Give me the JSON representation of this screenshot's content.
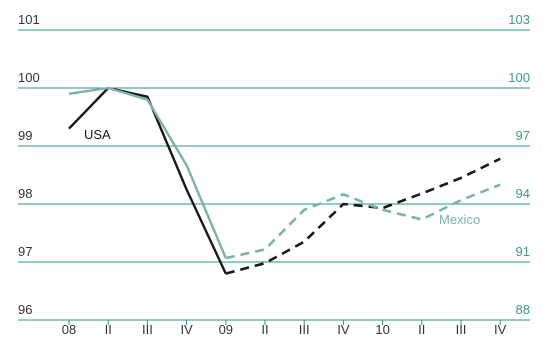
{
  "chart_data": {
    "type": "line",
    "title": "",
    "xlabel": "",
    "ylabel": "",
    "dual_axis": true,
    "grid": true,
    "categories": [
      "08",
      "II",
      "III",
      "IV",
      "09",
      "II",
      "III",
      "IV",
      "10",
      "II",
      "III",
      "IV"
    ],
    "left_axis": {
      "ylim": [
        96,
        101
      ],
      "ticks": [
        "101",
        "100",
        "99",
        "98",
        "97",
        "96"
      ]
    },
    "right_axis": {
      "ylim": [
        88,
        103
      ],
      "ticks": [
        "103",
        "100",
        "97",
        "94",
        "91",
        "88"
      ]
    },
    "series": [
      {
        "name": "USA",
        "axis": "left",
        "color": "#1a1a1a",
        "solid_values": [
          99.3,
          100.0,
          99.85,
          98.25,
          96.8
        ],
        "dashed_values": [
          null,
          null,
          null,
          null,
          96.8,
          96.98,
          97.35,
          98.0,
          97.93,
          98.18,
          98.45,
          98.78
        ]
      },
      {
        "name": "Mexico",
        "axis": "right",
        "color": "#7ab3a8",
        "solid_values": [
          99.7,
          100.0,
          99.4,
          96.0,
          91.2
        ],
        "dashed_values": [
          null,
          null,
          null,
          null,
          91.2,
          91.65,
          93.7,
          94.5,
          93.7,
          93.2,
          94.2,
          95.0
        ]
      }
    ],
    "colors": {
      "grid": "#2e9583",
      "right_ticks": "#3a9e88",
      "left_ticks": "#333333"
    }
  }
}
